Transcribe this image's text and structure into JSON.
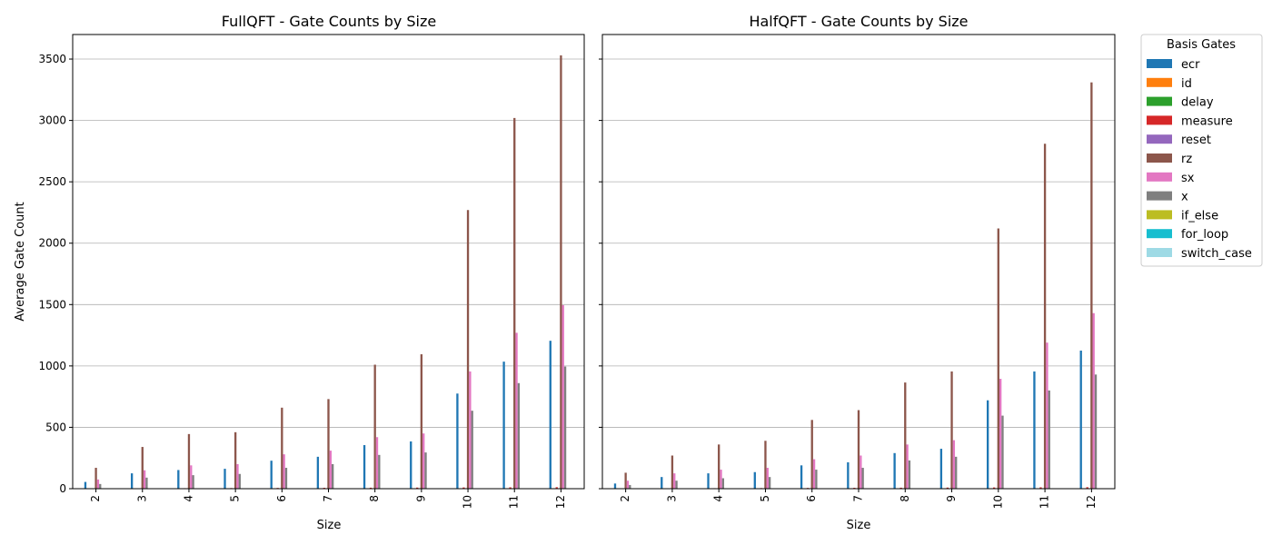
{
  "chart_data": [
    {
      "type": "bar",
      "title": "FullQFT - Gate Counts by Size",
      "xlabel": "Size",
      "ylabel": "Average Gate Count",
      "categories": [
        "2",
        "3",
        "4",
        "5",
        "6",
        "7",
        "8",
        "9",
        "10",
        "11",
        "12"
      ],
      "ylim": [
        0,
        3700
      ],
      "yticks": [
        0,
        500,
        1000,
        1500,
        2000,
        2500,
        3000,
        3500
      ],
      "grid": "y",
      "series": [
        {
          "name": "ecr",
          "color": "#1f77b4",
          "values": [
            55,
            125,
            152,
            162,
            228,
            260,
            355,
            385,
            775,
            1035,
            1205
          ]
        },
        {
          "name": "id",
          "color": "#ff7f0e",
          "values": [
            0,
            0,
            0,
            0,
            0,
            0,
            0,
            0,
            0,
            0,
            0
          ]
        },
        {
          "name": "delay",
          "color": "#2ca02c",
          "values": [
            0,
            0,
            0,
            0,
            0,
            0,
            0,
            0,
            0,
            0,
            0
          ]
        },
        {
          "name": "measure",
          "color": "#d62728",
          "values": [
            2,
            3,
            4,
            5,
            6,
            7,
            8,
            9,
            10,
            11,
            12
          ]
        },
        {
          "name": "reset",
          "color": "#9467bd",
          "values": [
            0,
            0,
            0,
            0,
            0,
            0,
            0,
            0,
            0,
            0,
            0
          ]
        },
        {
          "name": "rz",
          "color": "#8c564b",
          "values": [
            170,
            340,
            445,
            460,
            660,
            730,
            1010,
            1095,
            2270,
            3020,
            3530
          ]
        },
        {
          "name": "sx",
          "color": "#e377c2",
          "values": [
            75,
            150,
            190,
            200,
            280,
            310,
            420,
            450,
            955,
            1270,
            1495
          ]
        },
        {
          "name": "x",
          "color": "#7f7f7f",
          "values": [
            38,
            90,
            110,
            120,
            170,
            200,
            275,
            295,
            635,
            860,
            995
          ]
        },
        {
          "name": "if_else",
          "color": "#bcbd22",
          "values": [
            0,
            0,
            0,
            0,
            0,
            0,
            0,
            0,
            0,
            0,
            0
          ]
        },
        {
          "name": "for_loop",
          "color": "#17becf",
          "values": [
            0,
            0,
            0,
            0,
            0,
            0,
            0,
            0,
            0,
            0,
            0
          ]
        },
        {
          "name": "switch_case",
          "color": "#9edae5",
          "values": [
            0,
            0,
            0,
            0,
            0,
            0,
            0,
            0,
            0,
            0,
            0
          ]
        }
      ]
    },
    {
      "type": "bar",
      "title": "HalfQFT - Gate Counts by Size",
      "xlabel": "Size",
      "ylabel": "",
      "categories": [
        "2",
        "3",
        "4",
        "5",
        "6",
        "7",
        "8",
        "9",
        "10",
        "11",
        "12"
      ],
      "ylim": [
        0,
        3700
      ],
      "yticks": [
        0,
        500,
        1000,
        1500,
        2000,
        2500,
        3000,
        3500
      ],
      "grid": "y",
      "series": [
        {
          "name": "ecr",
          "color": "#1f77b4",
          "values": [
            42,
            95,
            125,
            135,
            190,
            215,
            290,
            325,
            720,
            955,
            1125
          ]
        },
        {
          "name": "id",
          "color": "#ff7f0e",
          "values": [
            0,
            0,
            0,
            0,
            0,
            0,
            0,
            0,
            0,
            0,
            0
          ]
        },
        {
          "name": "delay",
          "color": "#2ca02c",
          "values": [
            0,
            0,
            0,
            0,
            0,
            0,
            0,
            0,
            0,
            0,
            0
          ]
        },
        {
          "name": "measure",
          "color": "#d62728",
          "values": [
            2,
            3,
            4,
            5,
            6,
            7,
            8,
            9,
            10,
            11,
            12
          ]
        },
        {
          "name": "reset",
          "color": "#9467bd",
          "values": [
            0,
            0,
            0,
            0,
            0,
            0,
            0,
            0,
            0,
            0,
            0
          ]
        },
        {
          "name": "rz",
          "color": "#8c564b",
          "values": [
            130,
            270,
            360,
            390,
            560,
            640,
            865,
            955,
            2120,
            2810,
            3310
          ]
        },
        {
          "name": "sx",
          "color": "#e377c2",
          "values": [
            65,
            125,
            155,
            170,
            240,
            270,
            360,
            395,
            895,
            1190,
            1430
          ]
        },
        {
          "name": "x",
          "color": "#7f7f7f",
          "values": [
            30,
            65,
            85,
            95,
            155,
            170,
            230,
            260,
            595,
            800,
            930
          ]
        },
        {
          "name": "if_else",
          "color": "#bcbd22",
          "values": [
            0,
            0,
            0,
            0,
            0,
            0,
            0,
            0,
            0,
            0,
            0
          ]
        },
        {
          "name": "for_loop",
          "color": "#17becf",
          "values": [
            0,
            0,
            0,
            0,
            0,
            0,
            0,
            0,
            0,
            0,
            0
          ]
        },
        {
          "name": "switch_case",
          "color": "#9edae5",
          "values": [
            0,
            0,
            0,
            0,
            0,
            0,
            0,
            0,
            0,
            0,
            0
          ]
        }
      ]
    }
  ],
  "legend": {
    "title": "Basis Gates",
    "placement": "outside-right-top"
  }
}
